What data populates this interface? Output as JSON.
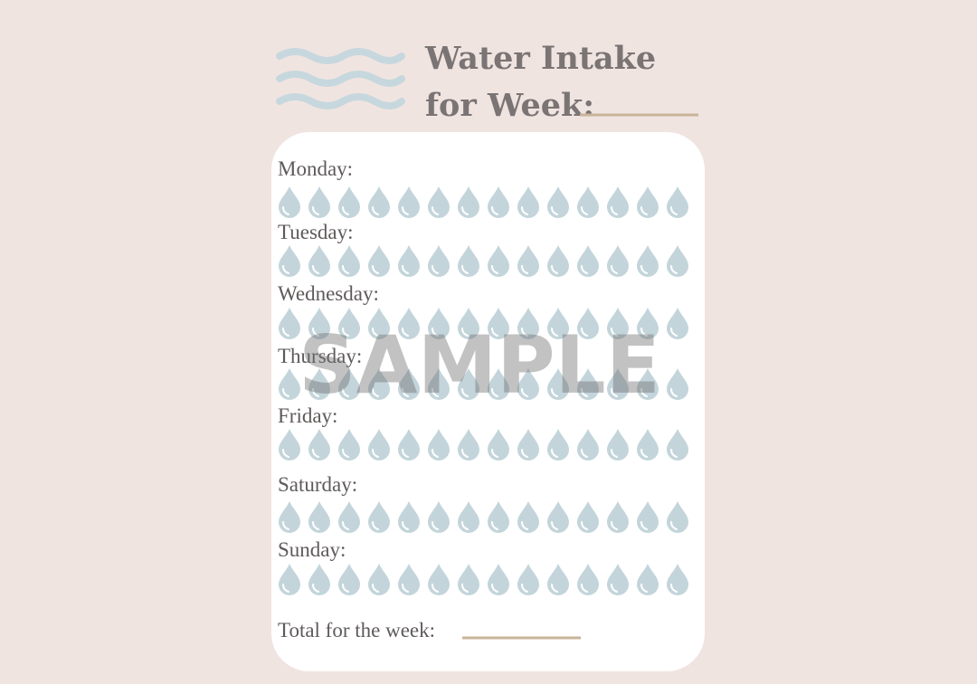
{
  "header": {
    "title_line1": "Water Intake",
    "title_line2": "for Week:"
  },
  "days": [
    "Monday:",
    "Tuesday:",
    "Wednesday:",
    "Thursday:",
    "Friday:",
    "Saturday:",
    "Sunday:"
  ],
  "footer": {
    "total_label": "Total for the week:"
  },
  "watermark": "SAMPLE"
}
